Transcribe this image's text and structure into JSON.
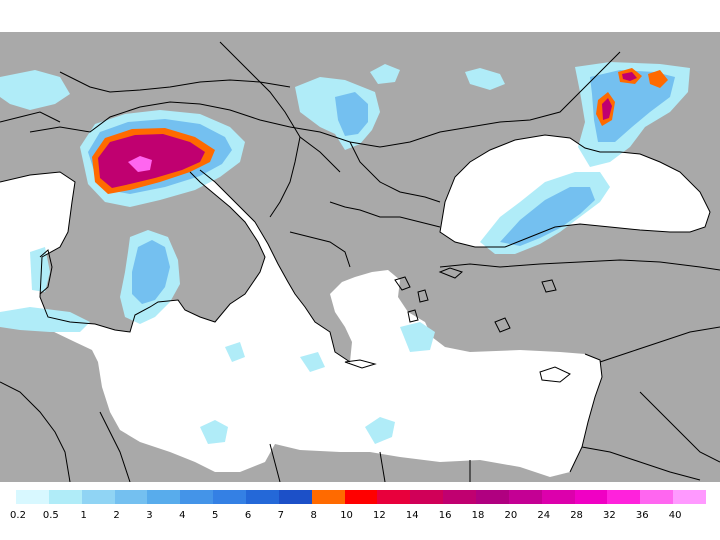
{
  "map": {
    "land_color": "#a9a9a9",
    "sea_color": "#ffffff",
    "border_color": "#000000"
  },
  "legend": {
    "colors": [
      "#d8f8ff",
      "#b0ecf8",
      "#90d4f4",
      "#74c0f0",
      "#58acec",
      "#4494e8",
      "#3480e4",
      "#2468d8",
      "#1c50c8",
      "#ff6a00",
      "#ff0000",
      "#e8003c",
      "#d00058",
      "#c00070",
      "#b00080",
      "#c40094",
      "#dc00ac",
      "#f000c4",
      "#ff22dc",
      "#ff66f0",
      "#ff99ff"
    ],
    "labels": [
      "0.2",
      "0.5",
      "1",
      "2",
      "3",
      "4",
      "5",
      "6",
      "7",
      "8",
      "10",
      "12",
      "14",
      "16",
      "18",
      "20",
      "24",
      "28",
      "32",
      "36",
      "40"
    ]
  }
}
